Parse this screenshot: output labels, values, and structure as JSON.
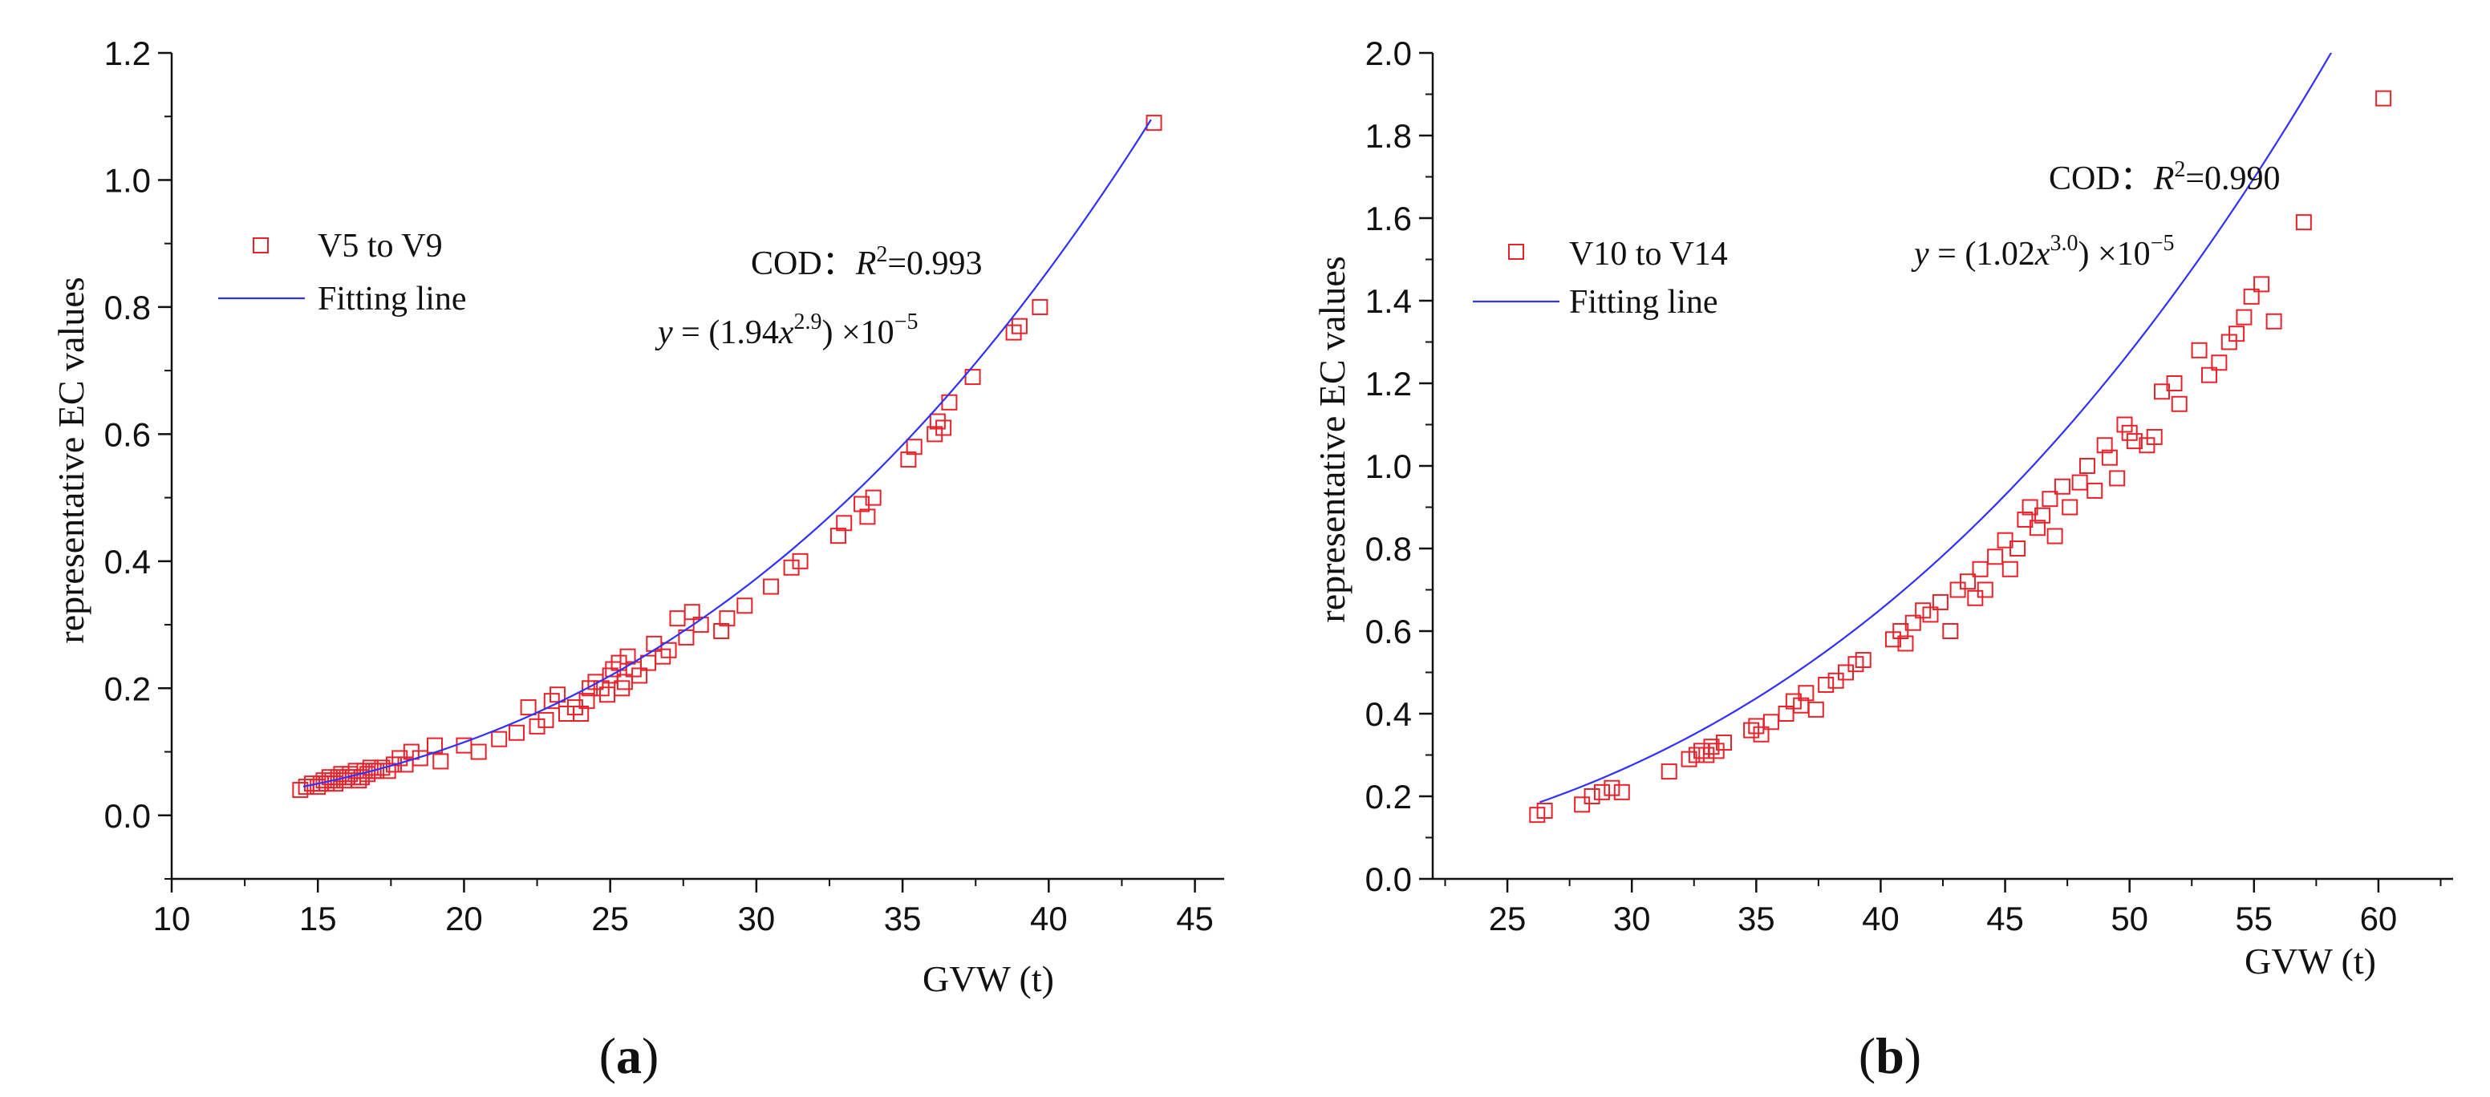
{
  "chart_data": [
    {
      "type": "scatter",
      "panel_label": "a",
      "xlabel": "GVW (t)",
      "ylabel": "representative EC values",
      "xlim": [
        10,
        46
      ],
      "ylim": [
        -0.1,
        1.2
      ],
      "xticks": [
        10,
        15,
        20,
        25,
        30,
        35,
        40,
        45
      ],
      "yticks": [
        0.0,
        0.2,
        0.4,
        0.6,
        0.8,
        1.0,
        1.2
      ],
      "x_minor_step": 2.5,
      "y_minor_step": 0.1,
      "ytick_format": 1,
      "legend": {
        "position": "top-left",
        "scatter_label": "V5 to V9",
        "line_label": "Fitting line"
      },
      "annotation": {
        "cod_prefix": "COD：",
        "r_symbol": "R",
        "r_sup": "2",
        "r_value": "=0.993",
        "eq_y": "y",
        "eq_eq": " = (1.94",
        "eq_x": "x",
        "eq_exp": "2.9",
        "eq_tail": ") ×10",
        "eq_tail_exp": "−5"
      },
      "fit": {
        "a": 1.94e-05,
        "b": 2.9,
        "x_range": [
          14.5,
          43.5
        ]
      },
      "series": [
        {
          "name": "V5 to V9",
          "color": "#e8222a",
          "x": [
            14.4,
            14.6,
            14.8,
            15.0,
            15.1,
            15.2,
            15.3,
            15.4,
            15.5,
            15.6,
            15.7,
            15.8,
            15.9,
            16.0,
            16.1,
            16.2,
            16.3,
            16.4,
            16.5,
            16.6,
            16.7,
            16.8,
            16.9,
            17.0,
            17.2,
            17.4,
            17.6,
            17.8,
            18.0,
            18.2,
            18.5,
            19.0,
            19.2,
            20.0,
            20.5,
            21.2,
            21.8,
            22.2,
            22.5,
            22.8,
            23.0,
            23.2,
            23.5,
            23.8,
            24.0,
            24.2,
            24.3,
            24.5,
            24.7,
            24.9,
            25.0,
            25.1,
            25.3,
            25.4,
            25.5,
            25.6,
            25.8,
            26.0,
            26.3,
            26.5,
            26.8,
            27.0,
            27.3,
            27.6,
            27.8,
            28.1,
            28.8,
            29.0,
            29.6,
            30.5,
            31.2,
            31.5,
            32.8,
            33.0,
            33.6,
            33.8,
            34.0,
            35.2,
            35.4,
            36.1,
            36.2,
            36.4,
            36.6,
            37.4,
            38.8,
            39.0,
            39.7,
            43.6
          ],
          "y": [
            0.04,
            0.045,
            0.05,
            0.045,
            0.05,
            0.055,
            0.05,
            0.06,
            0.055,
            0.05,
            0.06,
            0.065,
            0.055,
            0.06,
            0.065,
            0.06,
            0.07,
            0.055,
            0.06,
            0.07,
            0.065,
            0.075,
            0.07,
            0.07,
            0.075,
            0.07,
            0.08,
            0.09,
            0.08,
            0.1,
            0.09,
            0.11,
            0.085,
            0.11,
            0.1,
            0.12,
            0.13,
            0.17,
            0.14,
            0.15,
            0.18,
            0.19,
            0.16,
            0.17,
            0.16,
            0.18,
            0.2,
            0.21,
            0.2,
            0.19,
            0.22,
            0.23,
            0.24,
            0.2,
            0.21,
            0.25,
            0.23,
            0.22,
            0.24,
            0.27,
            0.25,
            0.26,
            0.31,
            0.28,
            0.32,
            0.3,
            0.29,
            0.31,
            0.33,
            0.36,
            0.39,
            0.4,
            0.44,
            0.46,
            0.49,
            0.47,
            0.5,
            0.56,
            0.58,
            0.6,
            0.62,
            0.61,
            0.65,
            0.69,
            0.76,
            0.77,
            0.8,
            1.09
          ]
        }
      ]
    },
    {
      "type": "scatter",
      "panel_label": "b",
      "xlabel": "GVW (t)",
      "ylabel": "representative EC values",
      "xlim": [
        22,
        63
      ],
      "ylim": [
        0.0,
        2.0
      ],
      "xticks": [
        25,
        30,
        35,
        40,
        45,
        50,
        55,
        60
      ],
      "yticks": [
        0.0,
        0.2,
        0.4,
        0.6,
        0.8,
        1.0,
        1.2,
        1.4,
        1.6,
        1.8,
        2.0
      ],
      "x_minor_step": 2.5,
      "y_minor_step": 0.1,
      "ytick_format": 1,
      "legend": {
        "position": "top-left",
        "scatter_label": "V10 to V14",
        "line_label": "Fitting line"
      },
      "annotation": {
        "cod_prefix": "COD：",
        "r_symbol": "R",
        "r_sup": "2",
        "r_value": "=0.990",
        "eq_y": "y",
        "eq_eq": " = (1.02",
        "eq_x": "x",
        "eq_exp": "3.0",
        "eq_tail": ") ×10",
        "eq_tail_exp": "−5"
      },
      "fit": {
        "a": 1.02e-05,
        "b": 3.0,
        "x_range": [
          26.3,
          60.2
        ]
      },
      "series": [
        {
          "name": "V10 to V14",
          "color": "#e8222a",
          "x": [
            26.2,
            26.5,
            28.0,
            28.4,
            28.8,
            29.2,
            29.6,
            31.5,
            32.3,
            32.6,
            32.8,
            33.0,
            33.2,
            33.4,
            33.7,
            34.8,
            35.0,
            35.2,
            35.6,
            36.2,
            36.5,
            36.8,
            37.0,
            37.4,
            37.8,
            38.2,
            38.6,
            39.0,
            39.3,
            40.5,
            40.8,
            41.0,
            41.3,
            41.7,
            42.0,
            42.4,
            42.8,
            43.1,
            43.5,
            43.8,
            44.0,
            44.2,
            44.6,
            45.0,
            45.2,
            45.5,
            45.8,
            46.0,
            46.3,
            46.5,
            46.8,
            47.0,
            47.3,
            47.6,
            48.0,
            48.3,
            48.6,
            49.0,
            49.2,
            49.5,
            49.8,
            50.0,
            50.2,
            50.7,
            51.0,
            51.3,
            51.8,
            52.0,
            52.8,
            53.2,
            53.6,
            54.0,
            54.3,
            54.6,
            54.9,
            55.3,
            55.8,
            57.0,
            60.2
          ],
          "y": [
            0.155,
            0.165,
            0.18,
            0.2,
            0.21,
            0.22,
            0.21,
            0.26,
            0.29,
            0.3,
            0.31,
            0.3,
            0.32,
            0.31,
            0.33,
            0.36,
            0.37,
            0.35,
            0.38,
            0.4,
            0.43,
            0.42,
            0.45,
            0.41,
            0.47,
            0.48,
            0.5,
            0.52,
            0.53,
            0.58,
            0.6,
            0.57,
            0.62,
            0.65,
            0.64,
            0.67,
            0.6,
            0.7,
            0.72,
            0.68,
            0.75,
            0.7,
            0.78,
            0.82,
            0.75,
            0.8,
            0.87,
            0.9,
            0.85,
            0.88,
            0.92,
            0.83,
            0.95,
            0.9,
            0.96,
            1.0,
            0.94,
            1.05,
            1.02,
            0.97,
            1.1,
            1.08,
            1.06,
            1.05,
            1.07,
            1.18,
            1.2,
            1.15,
            1.28,
            1.22,
            1.25,
            1.3,
            1.32,
            1.36,
            1.41,
            1.44,
            1.35,
            1.59,
            1.89
          ]
        }
      ]
    }
  ]
}
